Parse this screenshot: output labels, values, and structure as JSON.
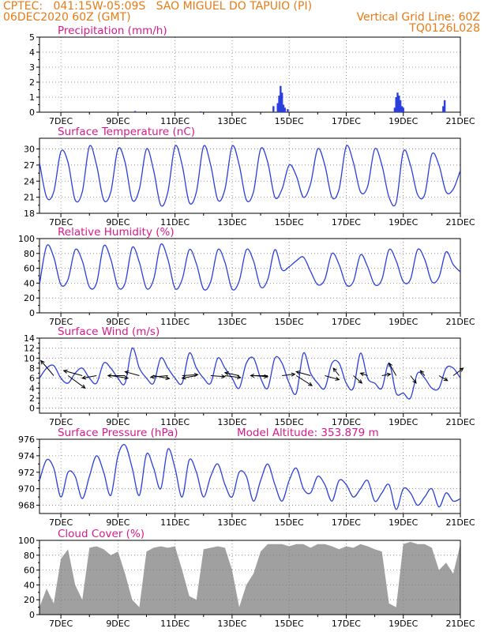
{
  "header": {
    "line1": "CPTEC:   041:15W-05:09S   SAO MIGUEL DO TAPUIO (PI)",
    "line2_left": "06DEC2020 60Z (GMT)",
    "line2_right": "Vertical Grid Line: 60Z",
    "line3_right": "TQ0126L028"
  },
  "colors": {
    "header": "#e87b16",
    "title": "#d61a8a",
    "series": "#2b3fdc",
    "cloud": "#a0a0a0",
    "grid": "#7a7a7a"
  },
  "chart_data": [
    {
      "type": "bar",
      "title": "Precipitation (mm/h)",
      "xlabel": "",
      "ylabel": "",
      "ylim": [
        0,
        5
      ],
      "yticks": [
        0,
        1,
        2,
        3,
        4,
        5
      ],
      "xlim": [
        6.25,
        21
      ],
      "xticks": [
        7,
        9,
        11,
        13,
        15,
        17,
        19,
        21
      ],
      "xticklabels": [
        "7DEC",
        "9DEC",
        "11DEC",
        "13DEC",
        "15DEC",
        "17DEC",
        "19DEC",
        "21DEC"
      ],
      "grid": true,
      "x": [
        9.6,
        11.9,
        14.45,
        14.6,
        14.65,
        14.7,
        14.75,
        14.8,
        14.85,
        14.95,
        18.7,
        18.75,
        18.8,
        18.85,
        18.9,
        18.95,
        19.0,
        20.4,
        20.45
      ],
      "values": [
        0.08,
        0.05,
        0.4,
        0.6,
        1.1,
        1.75,
        1.3,
        0.5,
        0.3,
        0.2,
        0.3,
        1.0,
        1.3,
        1.1,
        0.8,
        0.4,
        0.3,
        0.4,
        0.8
      ]
    },
    {
      "type": "line",
      "title": "Surface Temperature (nC)",
      "xlabel": "",
      "ylabel": "",
      "ylim": [
        18,
        32
      ],
      "yticks": [
        18,
        21,
        24,
        27,
        30
      ],
      "xlim": [
        6.25,
        21
      ],
      "xticks": [
        7,
        9,
        11,
        13,
        15,
        17,
        19,
        21
      ],
      "xticklabels": [
        "7DEC",
        "9DEC",
        "11DEC",
        "13DEC",
        "15DEC",
        "17DEC",
        "19DEC",
        "21DEC"
      ],
      "grid": true,
      "x": [
        6.25,
        6.5,
        6.75,
        7.0,
        7.25,
        7.5,
        7.75,
        8.0,
        8.25,
        8.5,
        8.75,
        9.0,
        9.25,
        9.5,
        9.75,
        10.0,
        10.25,
        10.5,
        10.75,
        11.0,
        11.25,
        11.5,
        11.75,
        12.0,
        12.25,
        12.5,
        12.75,
        13.0,
        13.25,
        13.5,
        13.75,
        14.0,
        14.25,
        14.5,
        14.75,
        15.0,
        15.25,
        15.5,
        15.75,
        16.0,
        16.25,
        16.5,
        16.75,
        17.0,
        17.25,
        17.5,
        17.75,
        18.0,
        18.25,
        18.5,
        18.75,
        19.0,
        19.25,
        19.5,
        19.75,
        20.0,
        20.25,
        20.5,
        20.75,
        21.0
      ],
      "values": [
        27.5,
        21,
        22,
        29.5,
        27.5,
        20.5,
        22,
        30.5,
        27,
        20.5,
        22,
        30,
        27.5,
        20.5,
        22.5,
        30,
        26,
        19.5,
        22,
        30.5,
        27,
        20,
        22,
        30.5,
        27,
        20.5,
        22.5,
        30.5,
        27,
        20.5,
        22,
        30,
        27.5,
        21,
        22.5,
        27,
        25,
        21,
        23.5,
        30,
        27,
        21,
        22.5,
        30.5,
        27.5,
        22,
        23,
        30,
        27,
        21,
        20,
        29.5,
        27,
        21.5,
        21.5,
        29,
        27,
        22,
        22.5,
        26
      ]
    },
    {
      "type": "line",
      "title": "Relative Humidity (%)",
      "xlabel": "",
      "ylabel": "",
      "ylim": [
        0,
        100
      ],
      "yticks": [
        0,
        20,
        40,
        60,
        80,
        100
      ],
      "xlim": [
        6.25,
        21
      ],
      "xticks": [
        7,
        9,
        11,
        13,
        15,
        17,
        19,
        21
      ],
      "xticklabels": [
        "7DEC",
        "9DEC",
        "11DEC",
        "13DEC",
        "15DEC",
        "17DEC",
        "19DEC",
        "21DEC"
      ],
      "grid": true,
      "x": [
        6.25,
        6.5,
        6.75,
        7.0,
        7.25,
        7.5,
        7.75,
        8.0,
        8.25,
        8.5,
        8.75,
        9.0,
        9.25,
        9.5,
        9.75,
        10.0,
        10.25,
        10.5,
        10.75,
        11.0,
        11.25,
        11.5,
        11.75,
        12.0,
        12.25,
        12.5,
        12.75,
        13.0,
        13.25,
        13.5,
        13.75,
        14.0,
        14.25,
        14.5,
        14.75,
        15.0,
        15.25,
        15.5,
        15.75,
        16.0,
        16.25,
        16.5,
        16.75,
        17.0,
        17.25,
        17.5,
        17.75,
        18.0,
        18.25,
        18.5,
        18.75,
        19.0,
        19.25,
        19.5,
        19.75,
        20.0,
        20.25,
        20.5,
        20.75,
        21.0
      ],
      "values": [
        38,
        90,
        75,
        38,
        45,
        85,
        70,
        35,
        40,
        90,
        72,
        35,
        40,
        88,
        68,
        33,
        45,
        92,
        72,
        33,
        45,
        85,
        66,
        32,
        42,
        85,
        68,
        32,
        43,
        85,
        70,
        35,
        45,
        85,
        58,
        62,
        70,
        75,
        56,
        38,
        45,
        80,
        65,
        38,
        42,
        78,
        62,
        38,
        45,
        85,
        70,
        42,
        45,
        85,
        72,
        42,
        48,
        82,
        65,
        55
      ]
    },
    {
      "type": "line",
      "title": "Surface Wind (m/s)",
      "xlabel": "",
      "ylabel": "",
      "ylim": [
        -1,
        14
      ],
      "yticks": [
        0,
        2,
        4,
        6,
        8,
        10,
        12,
        14
      ],
      "xlim": [
        6.25,
        21
      ],
      "xticks": [
        7,
        9,
        11,
        13,
        15,
        17,
        19,
        21
      ],
      "xticklabels": [
        "7DEC",
        "9DEC",
        "11DEC",
        "13DEC",
        "15DEC",
        "17DEC",
        "19DEC",
        "21DEC"
      ],
      "grid": true,
      "x": [
        6.25,
        6.5,
        6.75,
        7.0,
        7.25,
        7.5,
        7.75,
        8.0,
        8.25,
        8.5,
        8.75,
        9.0,
        9.25,
        9.5,
        9.75,
        10.0,
        10.25,
        10.5,
        10.75,
        11.0,
        11.25,
        11.5,
        11.75,
        12.0,
        12.25,
        12.5,
        12.75,
        13.0,
        13.25,
        13.5,
        13.75,
        14.0,
        14.25,
        14.5,
        14.75,
        15.0,
        15.25,
        15.5,
        15.75,
        16.0,
        16.25,
        16.5,
        16.75,
        17.0,
        17.25,
        17.5,
        17.75,
        18.0,
        18.25,
        18.5,
        18.75,
        19.0,
        19.25,
        19.5,
        19.75,
        20.0,
        20.25,
        20.5,
        20.75,
        21.0
      ],
      "values": [
        6,
        8,
        8.5,
        6,
        5,
        7,
        8,
        6,
        5,
        9,
        8,
        6,
        5,
        12,
        8,
        6,
        5,
        10,
        8,
        6,
        5,
        11,
        8,
        6,
        5,
        10,
        8,
        6,
        4,
        9,
        10,
        6,
        4,
        10,
        9,
        5,
        3,
        11,
        7,
        5,
        4,
        9,
        9,
        5,
        4,
        11,
        6,
        5,
        4,
        9,
        3,
        3,
        2,
        7,
        6,
        4,
        4,
        8,
        8,
        6
      ],
      "vectors": {
        "x": [
          6.75,
          7.25,
          7.75,
          8.25,
          8.75,
          9.25,
          9.75,
          10.25,
          10.75,
          11.25,
          11.75,
          12.25,
          12.75,
          13.25,
          13.75,
          14.25,
          14.75,
          15.25,
          15.75,
          16.25,
          16.75,
          17.25,
          17.75,
          18.25,
          18.75,
          19.25,
          19.75,
          20.25,
          20.75
        ],
        "dx": [
          -0.45,
          0.6,
          -0.65,
          -0.5,
          0.6,
          -0.6,
          -0.5,
          0.55,
          -0.6,
          0.55,
          -0.5,
          0.5,
          0.55,
          -0.5,
          0.5,
          -0.6,
          0.45,
          0.55,
          -0.5,
          0.5,
          -0.2,
          0.3,
          -0.25,
          0.3,
          -0.25,
          0.2,
          -0.15,
          0.3,
          0.35
        ],
        "dy": [
          3,
          -2.5,
          1,
          -0.5,
          -0.5,
          0,
          0.8,
          -0.6,
          -0.3,
          0.2,
          -0.5,
          -0.2,
          -0.4,
          0.6,
          -0.2,
          0,
          0.3,
          -2,
          0.8,
          -0.8,
          1.5,
          -1.5,
          0.5,
          0.3,
          2.5,
          -1.5,
          1,
          -1,
          1.5
        ]
      }
    },
    {
      "type": "line",
      "title": "Surface Pressure (hPa)",
      "annotation": "Model Altitude: 353.879 m",
      "xlabel": "",
      "ylabel": "",
      "ylim": [
        967,
        976
      ],
      "yticks": [
        968,
        970,
        972,
        974,
        976
      ],
      "xlim": [
        6.25,
        21
      ],
      "xticks": [
        7,
        9,
        11,
        13,
        15,
        17,
        19,
        21
      ],
      "xticklabels": [
        "7DEC",
        "9DEC",
        "11DEC",
        "13DEC",
        "15DEC",
        "17DEC",
        "19DEC",
        "21DEC"
      ],
      "grid": true,
      "x": [
        6.25,
        6.5,
        6.75,
        7.0,
        7.25,
        7.5,
        7.75,
        8.0,
        8.25,
        8.5,
        8.75,
        9.0,
        9.25,
        9.5,
        9.75,
        10.0,
        10.25,
        10.5,
        10.75,
        11.0,
        11.25,
        11.5,
        11.75,
        12.0,
        12.25,
        12.5,
        12.75,
        13.0,
        13.25,
        13.5,
        13.75,
        14.0,
        14.25,
        14.5,
        14.75,
        15.0,
        15.25,
        15.5,
        15.75,
        16.0,
        16.25,
        16.5,
        16.75,
        17.0,
        17.25,
        17.5,
        17.75,
        18.0,
        18.25,
        18.5,
        18.75,
        19.0,
        19.25,
        19.5,
        19.75,
        20.0,
        20.25,
        20.5,
        20.75,
        21.0
      ],
      "values": [
        971,
        973.5,
        972.5,
        969,
        972,
        971.5,
        968.8,
        971.5,
        974,
        972,
        969.2,
        974,
        975.3,
        972.5,
        969.2,
        974.2,
        972.5,
        970,
        974.8,
        972.5,
        969,
        973.5,
        972,
        969,
        971.5,
        973,
        970.5,
        969,
        972,
        971.5,
        968.5,
        971,
        973,
        970.5,
        968.5,
        971,
        972.5,
        970,
        969.5,
        971.5,
        970.5,
        968.5,
        971,
        970.5,
        969,
        970,
        971,
        968.5,
        969.5,
        970.5,
        967.5,
        970,
        969.5,
        968,
        969,
        970,
        967.8,
        969.5,
        968.5,
        968.8
      ]
    },
    {
      "type": "area",
      "title": "Cloud Cover (%)",
      "xlabel": "",
      "ylabel": "",
      "ylim": [
        0,
        100
      ],
      "yticks": [
        0,
        20,
        40,
        60,
        80,
        100
      ],
      "xlim": [
        6.25,
        21
      ],
      "xticks": [
        7,
        9,
        11,
        13,
        15,
        17,
        19,
        21
      ],
      "xticklabels": [
        "7DEC",
        "9DEC",
        "11DEC",
        "13DEC",
        "15DEC",
        "17DEC",
        "19DEC",
        "21DEC"
      ],
      "grid": true,
      "x": [
        6.25,
        6.5,
        6.75,
        7.0,
        7.25,
        7.5,
        7.75,
        8.0,
        8.25,
        8.5,
        8.75,
        9.0,
        9.25,
        9.5,
        9.75,
        10.0,
        10.25,
        10.5,
        10.75,
        11.0,
        11.25,
        11.5,
        11.75,
        12.0,
        12.25,
        12.5,
        12.75,
        13.0,
        13.25,
        13.5,
        13.75,
        14.0,
        14.25,
        14.5,
        14.75,
        15.0,
        15.25,
        15.5,
        15.75,
        16.0,
        16.25,
        16.5,
        16.75,
        17.0,
        17.25,
        17.5,
        17.75,
        18.0,
        18.25,
        18.5,
        18.75,
        19.0,
        19.25,
        19.5,
        19.75,
        20.0,
        20.25,
        20.5,
        20.75,
        21.0
      ],
      "values": [
        10,
        35,
        15,
        75,
        88,
        40,
        20,
        90,
        92,
        88,
        80,
        85,
        55,
        20,
        10,
        85,
        90,
        92,
        90,
        92,
        60,
        25,
        20,
        88,
        90,
        92,
        90,
        60,
        10,
        40,
        55,
        85,
        95,
        95,
        95,
        92,
        95,
        95,
        90,
        95,
        95,
        92,
        88,
        92,
        90,
        95,
        92,
        88,
        85,
        15,
        10,
        95,
        98,
        95,
        95,
        90,
        60,
        70,
        55,
        95
      ]
    }
  ]
}
